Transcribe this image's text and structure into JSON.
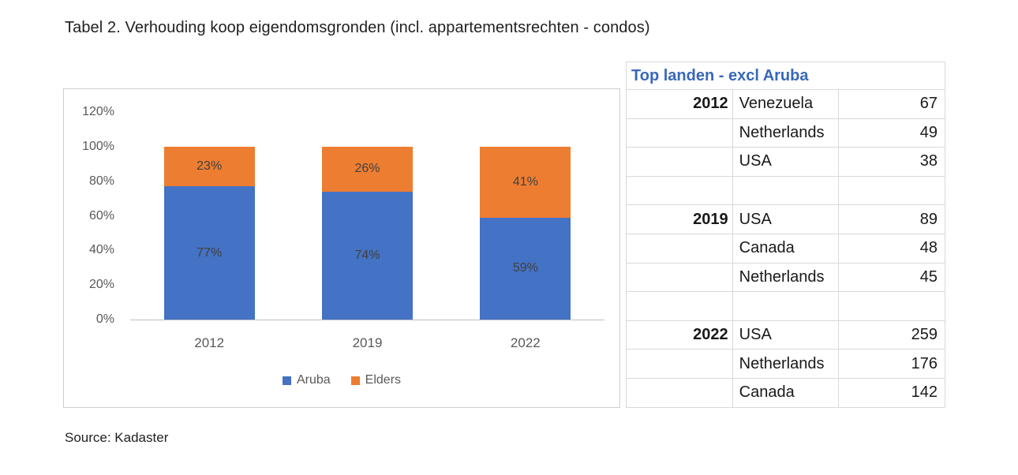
{
  "page": {
    "title": "Tabel 2. Verhouding koop eigendomsgronden (incl. appartementsrechten - condos)",
    "source": "Source: Kadaster"
  },
  "chart_data": {
    "type": "bar",
    "stacked": true,
    "categories": [
      "2012",
      "2019",
      "2022"
    ],
    "series": [
      {
        "name": "Aruba",
        "color": "#4472C4",
        "values": [
          77,
          74,
          59
        ]
      },
      {
        "name": "Elders",
        "color": "#ED7D31",
        "values": [
          23,
          26,
          41
        ]
      }
    ],
    "data_labels": [
      [
        "77%",
        "74%",
        "59%"
      ],
      [
        "23%",
        "26%",
        "41%"
      ]
    ],
    "y_ticks": [
      0,
      20,
      40,
      60,
      80,
      100,
      120
    ],
    "y_tick_labels": [
      "0%",
      "20%",
      "40%",
      "60%",
      "80%",
      "100%",
      "120%"
    ],
    "ylim": [
      0,
      120
    ],
    "grid": false,
    "legend_position": "bottom",
    "label_color": "#404040",
    "tick_label_color": "#595959",
    "axis_color": "#bfbfbf",
    "title": "",
    "xlabel": "",
    "ylabel": ""
  },
  "side_table": {
    "title": "Top landen - excl Aruba",
    "title_color": "#3968B9",
    "columns": [
      "year",
      "country",
      "value"
    ],
    "rows": [
      {
        "year": "2012",
        "country": "Venezuela",
        "value": "67"
      },
      {
        "year": "",
        "country": "Netherlands",
        "value": "49"
      },
      {
        "year": "",
        "country": "USA",
        "value": "38"
      },
      {
        "year": "",
        "country": "",
        "value": ""
      },
      {
        "year": "2019",
        "country": "USA",
        "value": "89"
      },
      {
        "year": "",
        "country": "Canada",
        "value": "48"
      },
      {
        "year": "",
        "country": "Netherlands",
        "value": "45"
      },
      {
        "year": "",
        "country": "",
        "value": ""
      },
      {
        "year": "2022",
        "country": "USA",
        "value": "259"
      },
      {
        "year": "",
        "country": "Netherlands",
        "value": "176"
      },
      {
        "year": "",
        "country": "Canada",
        "value": "142"
      }
    ]
  }
}
